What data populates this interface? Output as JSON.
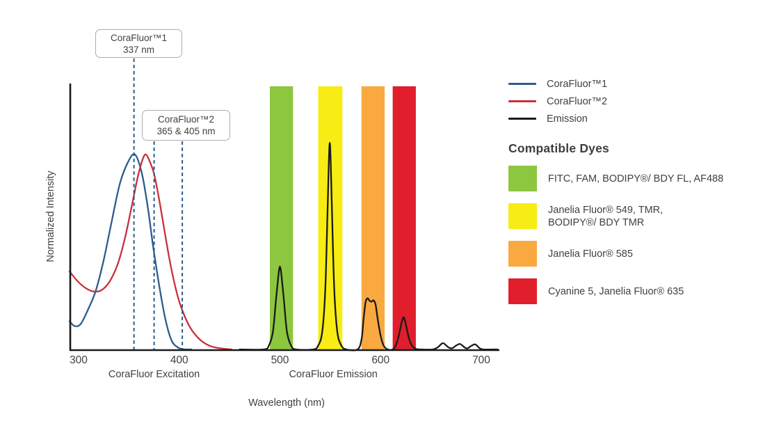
{
  "chart_data": {
    "type": "line",
    "title": "",
    "xlabel": "Wavelength (nm)",
    "ylabel": "Normalized Intensity",
    "x_axis": {
      "ticks": [
        300,
        400,
        500,
        600,
        700
      ],
      "range": [
        291,
        718
      ]
    },
    "y_axis": {
      "range": [
        0,
        1.37
      ],
      "gridlines": false
    },
    "x_section_labels": [
      {
        "text": "CoraFluor Excitation",
        "x": 375
      },
      {
        "text": "CoraFluor Emission",
        "x": 553
      }
    ],
    "series": [
      {
        "name": "CoraFluor™1",
        "role": "excitation",
        "color": "#2B5C8E",
        "points": [
          [
            291,
            0.145
          ],
          [
            296,
            0.12
          ],
          [
            302,
            0.13
          ],
          [
            309,
            0.2
          ],
          [
            317,
            0.3
          ],
          [
            325,
            0.46
          ],
          [
            333,
            0.66
          ],
          [
            341,
            0.85
          ],
          [
            349,
            0.96
          ],
          [
            356,
            1.0
          ],
          [
            363,
            0.9
          ],
          [
            369,
            0.72
          ],
          [
            374,
            0.53
          ],
          [
            380,
            0.33
          ],
          [
            386,
            0.16
          ],
          [
            392,
            0.05
          ],
          [
            398,
            0.012
          ],
          [
            404,
            0.001
          ],
          [
            412,
            0
          ]
        ]
      },
      {
        "name": "CoraFluor™2",
        "role": "excitation",
        "color": "#C8303C",
        "points": [
          [
            291,
            0.4
          ],
          [
            299,
            0.35
          ],
          [
            307,
            0.315
          ],
          [
            315,
            0.297
          ],
          [
            323,
            0.305
          ],
          [
            331,
            0.35
          ],
          [
            339,
            0.44
          ],
          [
            346,
            0.57
          ],
          [
            353,
            0.74
          ],
          [
            359,
            0.89
          ],
          [
            364,
            0.98
          ],
          [
            367,
            1.0
          ],
          [
            371,
            0.96
          ],
          [
            375,
            0.9
          ],
          [
            380,
            0.77
          ],
          [
            385,
            0.62
          ],
          [
            390,
            0.47
          ],
          [
            395,
            0.345
          ],
          [
            400,
            0.245
          ],
          [
            405,
            0.175
          ],
          [
            410,
            0.12
          ],
          [
            416,
            0.075
          ],
          [
            423,
            0.04
          ],
          [
            431,
            0.017
          ],
          [
            440,
            0.006
          ],
          [
            452,
            0
          ]
        ]
      },
      {
        "name": "Emission",
        "role": "emission",
        "color": "#1a1a1a",
        "points": [
          [
            460,
            0
          ],
          [
            484,
            0
          ],
          [
            489,
            0.02
          ],
          [
            493,
            0.09
          ],
          [
            496,
            0.25
          ],
          [
            498.5,
            0.38
          ],
          [
            500,
            0.425
          ],
          [
            501.5,
            0.38
          ],
          [
            504,
            0.25
          ],
          [
            507,
            0.09
          ],
          [
            511,
            0.02
          ],
          [
            516,
            0
          ],
          [
            533,
            0
          ],
          [
            538,
            0.02
          ],
          [
            542,
            0.09
          ],
          [
            545,
            0.3
          ],
          [
            547,
            0.65
          ],
          [
            548.5,
            0.95
          ],
          [
            549.5,
            1.06
          ],
          [
            550.5,
            0.95
          ],
          [
            552,
            0.65
          ],
          [
            554,
            0.3
          ],
          [
            557,
            0.09
          ],
          [
            561,
            0.02
          ],
          [
            566,
            0
          ],
          [
            577,
            0
          ],
          [
            581,
            0.05
          ],
          [
            583,
            0.15
          ],
          [
            585,
            0.24
          ],
          [
            587,
            0.262
          ],
          [
            589,
            0.25
          ],
          [
            591,
            0.245
          ],
          [
            593,
            0.252
          ],
          [
            595,
            0.23
          ],
          [
            597,
            0.16
          ],
          [
            600,
            0.07
          ],
          [
            603,
            0.02
          ],
          [
            607,
            0
          ],
          [
            612,
            0
          ],
          [
            615,
            0.02
          ],
          [
            618,
            0.07
          ],
          [
            621,
            0.14
          ],
          [
            623,
            0.165
          ],
          [
            625,
            0.13
          ],
          [
            628,
            0.06
          ],
          [
            631,
            0.02
          ],
          [
            635,
            0.003
          ],
          [
            640,
            0
          ],
          [
            652,
            0
          ],
          [
            657,
            0.012
          ],
          [
            662,
            0.032
          ],
          [
            667,
            0.012
          ],
          [
            671,
            0.006
          ],
          [
            675,
            0.02
          ],
          [
            679,
            0.028
          ],
          [
            683,
            0.012
          ],
          [
            686,
            0.005
          ],
          [
            690,
            0.018
          ],
          [
            694,
            0.026
          ],
          [
            698,
            0.008
          ],
          [
            702,
            0
          ],
          [
            716,
            0
          ]
        ]
      }
    ],
    "filter_bands": [
      {
        "color": "#8DC63F",
        "from": 490,
        "to": 513,
        "label": "FITC, FAM, BODIPY®/ BDY FL, AF488"
      },
      {
        "color": "#F7EC13",
        "from": 538,
        "to": 562,
        "label": "Janelia Fluor® 549, TMR, BODIPY®/ BDY TMR"
      },
      {
        "color": "#F9A940",
        "from": 581,
        "to": 604,
        "label": "Janelia Fluor® 585"
      },
      {
        "color": "#E11E2C",
        "from": 612,
        "to": 635,
        "label": "Cyanine 5, Janelia Fluor® 635"
      }
    ],
    "annotations": [
      {
        "lines": [
          "CoraFluor™1",
          "337 nm"
        ],
        "lines_x": [
          355
        ]
      },
      {
        "lines": [
          "CoraFluor™2",
          "365 & 405 nm"
        ],
        "lines_x": [
          375,
          403
        ]
      }
    ],
    "annotation_line_color": "#2B5C8E"
  },
  "legend": {
    "items": [
      {
        "label": "CoraFluor™1",
        "color": "#2B5C8E"
      },
      {
        "label": "CoraFluor™2",
        "color": "#C8303C"
      },
      {
        "label": "Emission",
        "color": "#1a1a1a"
      }
    ]
  },
  "compatible_dyes": {
    "heading": "Compatible Dyes",
    "items": [
      {
        "color": "#8DC63F",
        "label": "FITC, FAM, BODIPY®/ BDY FL, AF488"
      },
      {
        "color": "#F7EC13",
        "label": "Janelia Fluor® 549, TMR,\nBODIPY®/ BDY TMR"
      },
      {
        "color": "#F9A940",
        "label": "Janelia Fluor® 585"
      },
      {
        "color": "#E11E2C",
        "label": "Cyanine 5, Janelia Fluor® 635"
      }
    ]
  }
}
